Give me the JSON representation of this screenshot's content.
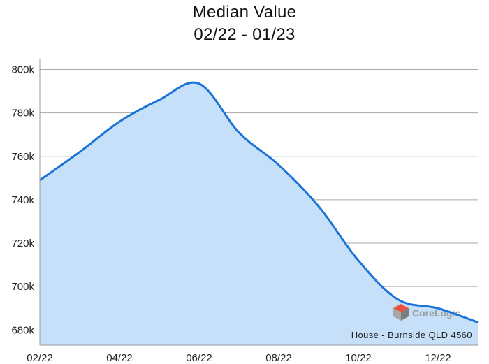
{
  "chart_data": {
    "type": "area",
    "title": "Median Value",
    "subtitle": "02/22 - 01/23",
    "x": [
      "02/22",
      "03/22",
      "04/22",
      "05/22",
      "06/22",
      "07/22",
      "08/22",
      "09/22",
      "10/22",
      "11/22",
      "12/22",
      "01/23"
    ],
    "x_tick_labels": [
      "02/22",
      "04/22",
      "06/22",
      "08/22",
      "10/22",
      "12/22"
    ],
    "y_tick_labels": [
      "680k",
      "700k",
      "720k",
      "740k",
      "760k",
      "780k",
      "800k"
    ],
    "y_ticks": [
      680000,
      700000,
      720000,
      740000,
      760000,
      780000,
      800000
    ],
    "ylim": [
      673000,
      805000
    ],
    "series": [
      {
        "values": [
          749000,
          762000,
          776000,
          786000,
          793500,
          771000,
          756000,
          737000,
          712000,
          694000,
          690000,
          683500
        ]
      }
    ],
    "colors": {
      "line": "#1a73d6",
      "fill": "#c6e0f9",
      "grid": "#a9a9a9"
    },
    "annotation": "House - Burnside QLD 4560",
    "grid": true,
    "legend": "none"
  },
  "watermark": {
    "text": "CoreLogic",
    "icon": "corelogic-logo-icon"
  }
}
